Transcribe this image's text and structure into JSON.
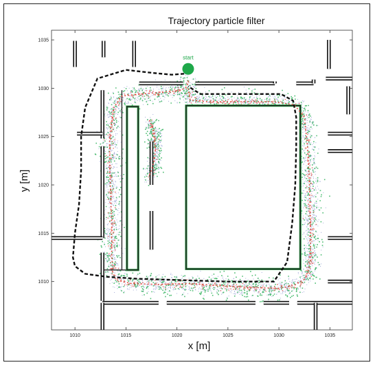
{
  "chart_data": {
    "type": "scatter",
    "title": "Trajectory particle filter",
    "xlabel": "x [m]",
    "ylabel": "y [m]",
    "xlim": [
      1007.7,
      1037.2
    ],
    "ylim": [
      1005.0,
      1036.0
    ],
    "x_ticks": [
      1010,
      1015,
      1020,
      1025,
      1030,
      1035
    ],
    "y_ticks": [
      1010,
      1015,
      1020,
      1025,
      1030,
      1035
    ],
    "grid": false,
    "start_label": "start",
    "start_point": [
      1021.1,
      1032.0
    ],
    "walls": [
      [
        [
          1010.0,
          1034.9
        ],
        [
          1010.0,
          1032.2
        ]
      ],
      [
        [
          1012.8,
          1034.9
        ],
        [
          1012.8,
          1033.2
        ]
      ],
      [
        [
          1015.8,
          1034.9
        ],
        [
          1015.8,
          1032.2
        ]
      ],
      [
        [
          1016.3,
          1030.5
        ],
        [
          1020.6,
          1030.5
        ]
      ],
      [
        [
          1021.8,
          1030.5
        ],
        [
          1029.6,
          1030.5
        ]
      ],
      [
        [
          1029.6,
          1030.5
        ],
        [
          1029.6,
          1030.7
        ]
      ],
      [
        [
          1031.7,
          1030.5
        ],
        [
          1033.4,
          1030.5
        ]
      ],
      [
        [
          1033.4,
          1030.5
        ],
        [
          1033.4,
          1030.9
        ]
      ],
      [
        [
          1034.6,
          1031.0
        ],
        [
          1037.2,
          1031.0
        ]
      ],
      [
        [
          1034.9,
          1035.0
        ],
        [
          1034.9,
          1032.0
        ]
      ],
      [
        [
          1036.8,
          1030.2
        ],
        [
          1036.8,
          1027.3
        ]
      ],
      [
        [
          1034.8,
          1025.3
        ],
        [
          1037.2,
          1025.3
        ]
      ],
      [
        [
          1034.8,
          1023.5
        ],
        [
          1037.2,
          1023.5
        ]
      ],
      [
        [
          1034.8,
          1014.5
        ],
        [
          1037.2,
          1014.5
        ]
      ],
      [
        [
          1034.8,
          1010.0
        ],
        [
          1037.2,
          1010.0
        ]
      ],
      [
        [
          1012.7,
          1029.8
        ],
        [
          1012.7,
          1024.8
        ]
      ],
      [
        [
          1010.2,
          1025.3
        ],
        [
          1012.7,
          1025.3
        ]
      ],
      [
        [
          1012.7,
          1024.0
        ],
        [
          1012.7,
          1014.5
        ]
      ],
      [
        [
          1007.7,
          1014.5
        ],
        [
          1012.7,
          1014.5
        ]
      ],
      [
        [
          1012.7,
          1013.0
        ],
        [
          1012.7,
          1008.0
        ]
      ],
      [
        [
          1012.7,
          1007.8
        ],
        [
          1018.2,
          1007.8
        ]
      ],
      [
        [
          1019.0,
          1007.8
        ],
        [
          1027.7,
          1007.8
        ]
      ],
      [
        [
          1028.5,
          1007.8
        ],
        [
          1031.0,
          1007.8
        ]
      ],
      [
        [
          1031.8,
          1007.8
        ],
        [
          1037.2,
          1007.8
        ]
      ],
      [
        [
          1012.7,
          1007.8
        ],
        [
          1012.7,
          1005.0
        ]
      ],
      [
        [
          1033.6,
          1007.8
        ],
        [
          1033.6,
          1005.0
        ]
      ],
      [
        [
          1017.5,
          1024.5
        ],
        [
          1017.5,
          1020.0
        ]
      ],
      [
        [
          1017.5,
          1017.3
        ],
        [
          1017.5,
          1013.3
        ]
      ]
    ],
    "inner_blocks": [
      [
        [
          1015.1,
          1028.1
        ],
        [
          1016.2,
          1011.2
        ]
      ],
      [
        [
          1020.9,
          1028.2
        ],
        [
          1032.1,
          1011.3
        ]
      ]
    ],
    "inner_walls": [
      [
        [
          1014.6,
          1029.8
        ],
        [
          1014.6,
          1011.2
        ]
      ],
      [
        [
          1012.8,
          1011.2
        ],
        [
          1016.3,
          1011.2
        ]
      ]
    ],
    "series": [
      {
        "x": [
          1021.1,
          1021.0,
          1020.6,
          1019.8,
          1018.5,
          1016.5,
          1014.6,
          1013.8,
          1013.4,
          1013.4,
          1013.5,
          1013.6,
          1013.6,
          1013.7,
          1014.0,
          1015.5,
          1018.0,
          1021.0,
          1024.0,
          1027.0,
          1030.0,
          1031.5,
          1032.6,
          1033.1,
          1033.1,
          1033.0,
          1032.8,
          1032.5,
          1031.5,
          1029.5,
          1026.0,
          1023.0,
          1021.3,
          1021.1
        ],
        "y": [
          1030.8,
          1030.2,
          1029.9,
          1029.7,
          1029.6,
          1029.4,
          1029.2,
          1028.0,
          1025.0,
          1022.0,
          1019.0,
          1016.0,
          1013.0,
          1011.0,
          1010.2,
          1009.8,
          1009.7,
          1009.8,
          1009.6,
          1009.4,
          1009.3,
          1009.6,
          1010.3,
          1012.0,
          1016.0,
          1020.0,
          1024.0,
          1027.0,
          1028.3,
          1028.6,
          1028.6,
          1028.6,
          1028.8,
          1030.0
        ]
      },
      {
        "x": [
          1017.3,
          1017.7,
          1017.9,
          1017.8,
          1017.5,
          1017.2
        ],
        "y": [
          1026.7,
          1025.5,
          1024.0,
          1022.6,
          1021.5,
          1020.8
        ]
      },
      {
        "x": [
          1020.7,
          1019.5,
          1017.5,
          1015.0,
          1012.2,
          1011.0,
          1010.6,
          1010.6,
          1010.4,
          1010.0,
          1009.8,
          1010.0,
          1011.0,
          1013.0,
          1016.0,
          1019.0,
          1022.0,
          1025.0,
          1028.0,
          1029.5,
          1030.8,
          1031.3,
          1031.6,
          1031.7,
          1031.7,
          1031.4,
          1030.2,
          1028.0,
          1025.0,
          1022.3,
          1021.1
        ],
        "y": [
          1031.5,
          1031.4,
          1031.6,
          1031.9,
          1031.0,
          1028.0,
          1025.0,
          1021.5,
          1018.0,
          1015.0,
          1012.5,
          1011.6,
          1010.8,
          1010.5,
          1010.3,
          1010.2,
          1010.1,
          1010.0,
          1010.0,
          1010.0,
          1012.0,
          1016.0,
          1020.0,
          1024.0,
          1027.0,
          1028.7,
          1029.4,
          1029.4,
          1029.4,
          1029.4,
          1030.2
        ]
      }
    ],
    "colors": {
      "walls_outer": "#111111",
      "walls_inner": "#ffffff",
      "blocks": "#1d1d1d",
      "block_edge": "#2e9a48",
      "particles_blue": "#2b3fa8",
      "particles_green": "#2fb15a",
      "particles_red": "#e0443a",
      "trajectory": "#111111",
      "start": "#1fa84a"
    }
  }
}
